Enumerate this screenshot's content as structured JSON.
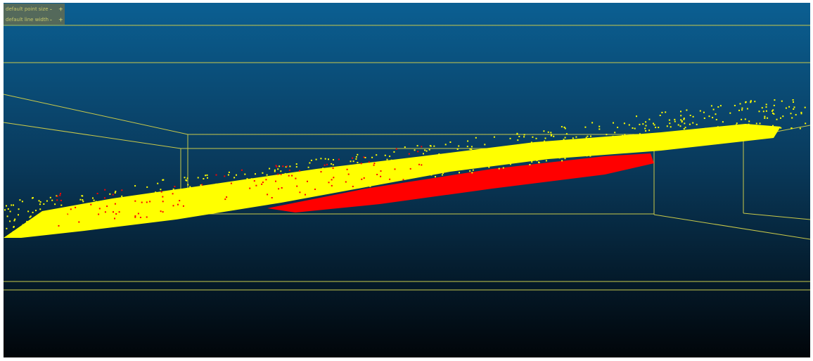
{
  "toolbar": {
    "rows": [
      {
        "label": "default point size",
        "minus": "-",
        "plus": "+"
      },
      {
        "label": "default line width",
        "minus": "-",
        "plus": "+"
      }
    ]
  }
}
